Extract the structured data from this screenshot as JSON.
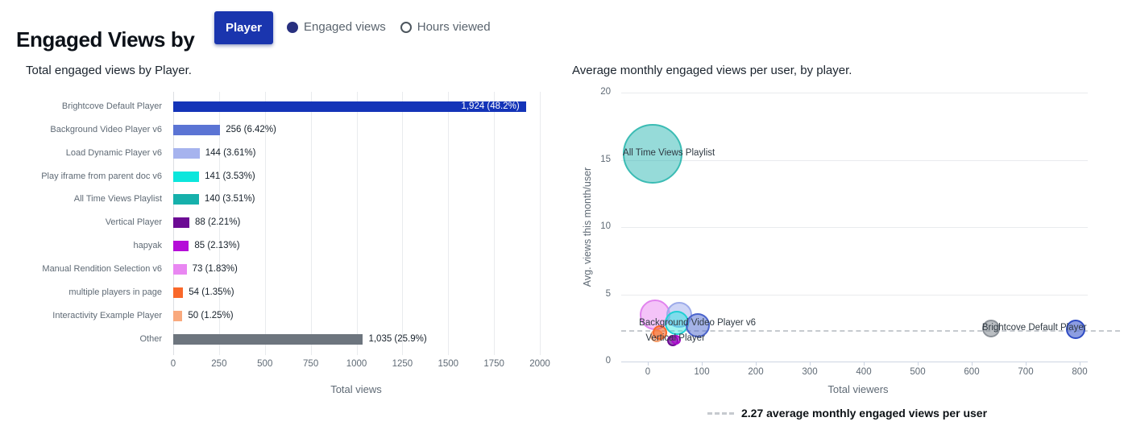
{
  "header": {
    "title": "Engaged Views by",
    "dimension_button_label": "Player",
    "dimension_button_color": "#1a35ae",
    "radio_selected_color": "#28307f",
    "metric_options": [
      {
        "label": "Engaged views",
        "selected": true
      },
      {
        "label": "Hours viewed",
        "selected": false
      }
    ]
  },
  "chart_data": [
    {
      "type": "bar",
      "orientation": "horizontal",
      "title": "Total engaged views by Player.",
      "xlabel": "Total views",
      "x_ticks": [
        0,
        250,
        500,
        750,
        1000,
        1250,
        1500,
        1750,
        2000
      ],
      "xlim": [
        0,
        2000
      ],
      "grid": "vertical",
      "categories": [
        "Brightcove Default Player",
        "Background Video Player v6",
        "Load Dynamic Player v6",
        "Play iframe from parent doc v6",
        "All Time Views Playlist",
        "Vertical Player",
        "hapyak",
        "Manual Rendition Selection v6",
        "multiple players in page",
        "Interactivity Example Player",
        "Other"
      ],
      "values": [
        1924,
        256,
        144,
        141,
        140,
        88,
        85,
        73,
        54,
        50,
        1035
      ],
      "value_labels": [
        "1,924 (48.2%)",
        "256 (6.42%)",
        "144 (3.61%)",
        "141 (3.53%)",
        "140 (3.51%)",
        "88 (2.21%)",
        "85 (2.13%)",
        "73 (1.83%)",
        "54 (1.35%)",
        "50 (1.25%)",
        "1,035 (25.9%)"
      ],
      "value_label_inside": [
        true,
        false,
        false,
        false,
        false,
        false,
        false,
        false,
        false,
        false,
        false
      ],
      "colors": [
        "#1434b8",
        "#5b74d4",
        "#a6b3ee",
        "#0ce6dc",
        "#16b0ab",
        "#6c0b94",
        "#b50dd8",
        "#e987f2",
        "#f9682a",
        "#f9a97d",
        "#6d757e"
      ]
    },
    {
      "type": "scatter",
      "title": "Average monthly engaged views per user, by player.",
      "xlabel": "Total viewers",
      "ylabel": "Avg. views this month/user",
      "x_ticks": [
        0,
        100,
        200,
        300,
        400,
        500,
        600,
        700,
        800
      ],
      "y_ticks": [
        0,
        5,
        10,
        15,
        20
      ],
      "xlim": [
        -49,
        815
      ],
      "ylim": [
        0,
        20
      ],
      "grid": "horizontal",
      "average_line": {
        "value": 2.27,
        "style": "dashed",
        "legend_label": "2.27 average monthly engaged views per user"
      },
      "points": [
        {
          "name": "All Time Views Playlist",
          "x": 9,
          "y": 15.45,
          "r": 37,
          "fill": "rgba(22,176,171,0.45)",
          "stroke": "#3bbcb4",
          "label": "All Time Views Playlist",
          "label_at": [
            39,
            15.45
          ]
        },
        {
          "name": "Manual Rendition Selection v6",
          "x": 13,
          "y": 3.5,
          "r": 19,
          "fill": "rgba(233,135,242,0.5)",
          "stroke": "#e183ee"
        },
        {
          "name": "Load Dynamic Player v6",
          "x": 58,
          "y": 3.5,
          "r": 16,
          "fill": "rgba(166,179,238,0.55)",
          "stroke": "#9dabea"
        },
        {
          "name": "Play iframe from parent doc v6",
          "x": 54,
          "y": 2.9,
          "r": 15,
          "fill": "rgba(12,230,220,0.4)",
          "stroke": "#21cfd4"
        },
        {
          "name": "Background Video Player v6",
          "x": 92,
          "y": 2.7,
          "r": 15,
          "fill": "rgba(91,116,212,0.55)",
          "stroke": "#4a63cc",
          "label": "Background Video Player v6",
          "label_at": [
            92,
            2.81
          ]
        },
        {
          "name": "Interactivity Example Player",
          "x": 16,
          "y": 1.9,
          "r": 8,
          "fill": "rgba(249,169,125,0.7)",
          "stroke": "#f8a06c"
        },
        {
          "name": "multiple players in page",
          "x": 22,
          "y": 2.15,
          "r": 9,
          "fill": "rgba(249,106,44,0.6)",
          "stroke": "#f9682a"
        },
        {
          "name": "Vertical Player",
          "x": 46,
          "y": 1.55,
          "r": 7,
          "fill": "rgba(108,11,148,0.7)",
          "stroke": "#6c0b94",
          "label": "Vertical Player",
          "label_at": [
            51,
            1.65
          ]
        },
        {
          "name": "hapyak",
          "x": 52,
          "y": 1.6,
          "r": 6,
          "fill": "rgba(181,13,216,0.55)",
          "stroke": "#a90cc9"
        },
        {
          "name": "Other",
          "x": 636,
          "y": 2.45,
          "r": 11,
          "fill": "rgba(130,137,144,0.55)",
          "stroke": "#8b9198"
        },
        {
          "name": "Brightcove Default Player",
          "x": 793,
          "y": 2.4,
          "r": 12,
          "fill": "rgba(91,116,212,0.7)",
          "stroke": "#2f4cc4",
          "label": "Brightcove Default Player",
          "label_at": [
            716,
            2.45
          ]
        }
      ]
    }
  ]
}
